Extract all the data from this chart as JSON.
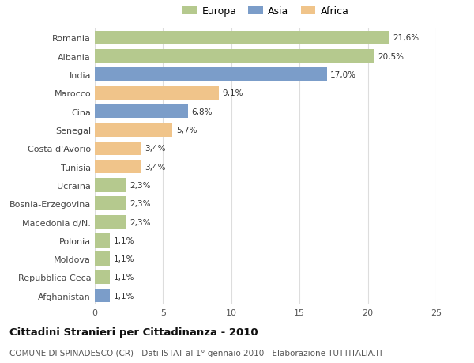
{
  "categories": [
    "Romania",
    "Albania",
    "India",
    "Marocco",
    "Cina",
    "Senegal",
    "Costa d'Avorio",
    "Tunisia",
    "Ucraina",
    "Bosnia-Erzegovina",
    "Macedonia d/N.",
    "Polonia",
    "Moldova",
    "Repubblica Ceca",
    "Afghanistan"
  ],
  "values": [
    21.6,
    20.5,
    17.0,
    9.1,
    6.8,
    5.7,
    3.4,
    3.4,
    2.3,
    2.3,
    2.3,
    1.1,
    1.1,
    1.1,
    1.1
  ],
  "labels": [
    "21,6%",
    "20,5%",
    "17,0%",
    "9,1%",
    "6,8%",
    "5,7%",
    "3,4%",
    "3,4%",
    "2,3%",
    "2,3%",
    "2,3%",
    "1,1%",
    "1,1%",
    "1,1%",
    "1,1%"
  ],
  "continents": [
    "Europa",
    "Europa",
    "Asia",
    "Africa",
    "Asia",
    "Africa",
    "Africa",
    "Africa",
    "Europa",
    "Europa",
    "Europa",
    "Europa",
    "Europa",
    "Europa",
    "Asia"
  ],
  "colors": {
    "Europa": "#b5c98e",
    "Asia": "#7b9dc9",
    "Africa": "#f0c48a"
  },
  "legend_order": [
    "Europa",
    "Asia",
    "Africa"
  ],
  "legend_colors": [
    "#b5c98e",
    "#7b9dc9",
    "#f0c48a"
  ],
  "xlim": [
    0,
    25
  ],
  "xticks": [
    0,
    5,
    10,
    15,
    20,
    25
  ],
  "title": "Cittadini Stranieri per Cittadinanza - 2010",
  "subtitle": "COMUNE DI SPINADESCO (CR) - Dati ISTAT al 1° gennaio 2010 - Elaborazione TUTTITALIA.IT",
  "background_color": "#ffffff",
  "bar_height": 0.75,
  "grid_color": "#dddddd",
  "label_fontsize": 7.5,
  "ytick_fontsize": 8.0,
  "xtick_fontsize": 8.0,
  "legend_fontsize": 9.0,
  "title_fontsize": 9.5,
  "subtitle_fontsize": 7.5
}
